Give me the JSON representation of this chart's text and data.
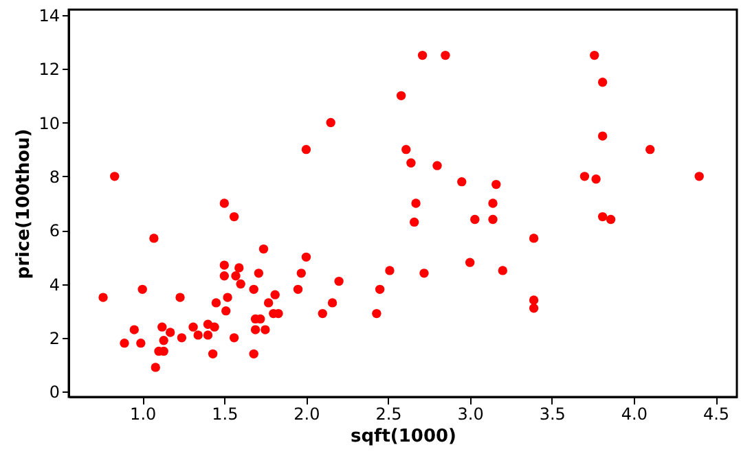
{
  "chart_data": {
    "type": "scatter",
    "xlabel": "sqft(1000)",
    "ylabel": "price(100thou)",
    "xlim": [
      0.55,
      4.63
    ],
    "ylim": [
      -0.2,
      14.2
    ],
    "xticks": [
      {
        "value": 1,
        "label": "1.0"
      },
      {
        "value": 1.5,
        "label": "1.5"
      },
      {
        "value": 2,
        "label": "2.0"
      },
      {
        "value": 2.5,
        "label": "2.5"
      },
      {
        "value": 3,
        "label": "3.0"
      },
      {
        "value": 3.5,
        "label": "3.5"
      },
      {
        "value": 4,
        "label": "4.0"
      },
      {
        "value": 4.5,
        "label": "4.5"
      }
    ],
    "yticks": [
      0,
      2,
      4,
      6,
      8,
      10,
      12,
      14
    ],
    "grid": false,
    "marker": "circle",
    "series": [
      {
        "color": "#ff0000",
        "x": [
          0.76,
          0.83,
          0.89,
          0.95,
          0.99,
          1.0,
          1.07,
          1.08,
          1.1,
          1.12,
          1.13,
          1.13,
          1.17,
          1.23,
          1.24,
          1.31,
          1.34,
          1.4,
          1.4,
          1.43,
          1.44,
          1.45,
          1.5,
          1.5,
          1.5,
          1.51,
          1.52,
          1.56,
          1.56,
          1.57,
          1.59,
          1.6,
          1.68,
          1.68,
          1.69,
          1.69,
          1.71,
          1.72,
          1.74,
          1.75,
          1.77,
          1.8,
          1.81,
          1.83,
          1.95,
          1.97,
          2.0,
          2.0,
          2.1,
          2.15,
          2.16,
          2.2,
          2.43,
          2.45,
          2.51,
          2.58,
          2.61,
          2.64,
          2.66,
          2.67,
          2.71,
          2.72,
          2.8,
          2.85,
          2.95,
          3.0,
          3.03,
          3.14,
          3.14,
          3.16,
          3.2,
          3.39,
          3.39,
          3.39,
          3.7,
          3.76,
          3.77,
          3.81,
          3.81,
          3.81,
          3.86,
          4.1,
          4.4
        ],
        "values": [
          3.5,
          8.0,
          1.8,
          2.3,
          1.8,
          3.8,
          5.7,
          0.9,
          1.5,
          2.4,
          1.9,
          1.5,
          2.2,
          3.5,
          2.0,
          2.4,
          2.1,
          2.5,
          2.1,
          1.4,
          2.4,
          3.3,
          4.7,
          4.3,
          7.0,
          3.0,
          3.5,
          6.5,
          2.0,
          4.3,
          4.6,
          4.0,
          1.4,
          3.8,
          2.3,
          2.7,
          4.4,
          2.7,
          5.3,
          2.3,
          3.3,
          2.9,
          3.6,
          2.9,
          3.8,
          4.4,
          5.0,
          9.0,
          2.9,
          10.0,
          3.3,
          4.1,
          2.9,
          3.8,
          4.5,
          11.0,
          9.0,
          8.5,
          6.3,
          7.0,
          12.5,
          4.4,
          8.4,
          12.5,
          7.8,
          4.8,
          6.4,
          7.0,
          6.4,
          7.7,
          4.5,
          5.7,
          3.4,
          3.1,
          8.0,
          12.5,
          7.9,
          11.5,
          9.5,
          6.5,
          6.4,
          9.0,
          8.0
        ]
      }
    ]
  }
}
